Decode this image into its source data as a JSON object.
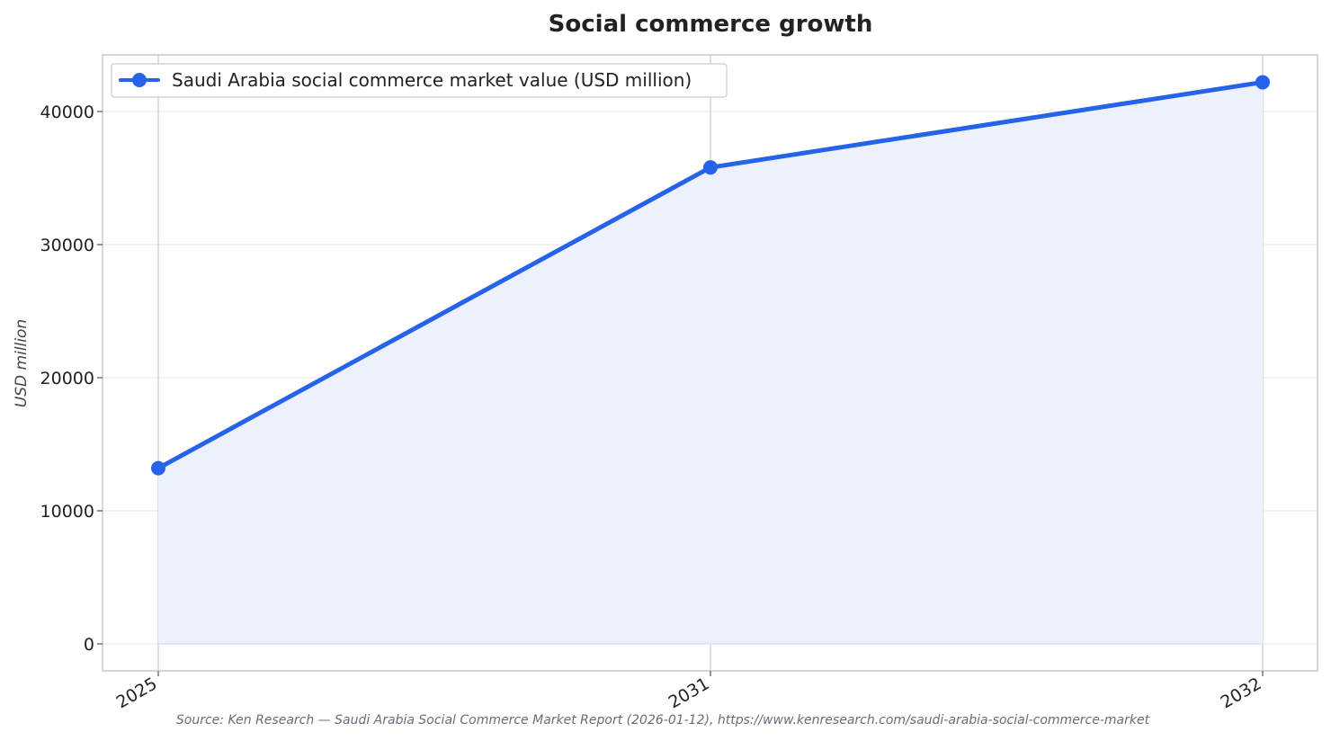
{
  "chart_data": {
    "type": "area",
    "title": "Social commerce growth",
    "xlabel": "",
    "ylabel": "USD million",
    "categories": [
      "2025",
      "2031",
      "2032"
    ],
    "series": [
      {
        "name": "Saudi Arabia social commerce market value (USD million)",
        "values": [
          13200,
          35800,
          42200
        ],
        "color": "#2563eb",
        "fill_color": "#ecf1fc"
      }
    ],
    "y_ticks": [
      "0",
      "10000",
      "20000",
      "30000",
      "40000"
    ],
    "ylim": [
      -2000,
      44200
    ],
    "grid": true,
    "legend_position": "top-left",
    "source": "Source: Ken Research — Saudi Arabia Social Commerce Market Report (2026-01-12), https://www.kenresearch.com/saudi-arabia-social-commerce-market"
  }
}
